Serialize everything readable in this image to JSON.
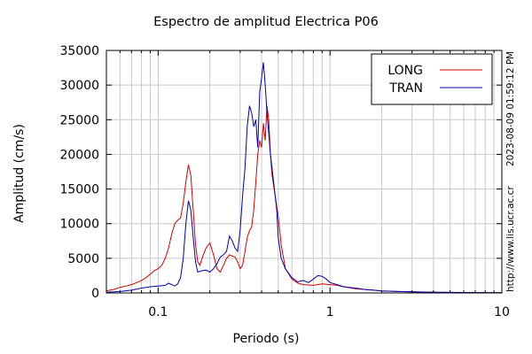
{
  "chart_data": {
    "type": "line",
    "title": "Espectro de amplitud Electrica P06",
    "xlabel": "Periodo (s)",
    "ylabel": "Amplitud (cm/s)",
    "xscale": "log",
    "xlim": [
      0.05,
      10
    ],
    "ylim": [
      0,
      35000
    ],
    "grid": true,
    "legend_position": "top-right",
    "x_ticks": [
      "0.1",
      "1",
      "10"
    ],
    "y_ticks": [
      "0",
      "5000",
      "10000",
      "15000",
      "20000",
      "25000",
      "30000",
      "35000"
    ],
    "series": [
      {
        "name": "LONG",
        "color": "#d40000",
        "points": [
          [
            0.05,
            300
          ],
          [
            0.055,
            500
          ],
          [
            0.06,
            800
          ],
          [
            0.065,
            1000
          ],
          [
            0.07,
            1200
          ],
          [
            0.075,
            1500
          ],
          [
            0.08,
            1800
          ],
          [
            0.085,
            2200
          ],
          [
            0.09,
            2700
          ],
          [
            0.095,
            3200
          ],
          [
            0.1,
            3500
          ],
          [
            0.105,
            4000
          ],
          [
            0.11,
            5000
          ],
          [
            0.115,
            6500
          ],
          [
            0.12,
            8500
          ],
          [
            0.125,
            10000
          ],
          [
            0.13,
            10500
          ],
          [
            0.135,
            10800
          ],
          [
            0.14,
            13000
          ],
          [
            0.145,
            16000
          ],
          [
            0.15,
            18500
          ],
          [
            0.155,
            17000
          ],
          [
            0.16,
            12000
          ],
          [
            0.165,
            7000
          ],
          [
            0.17,
            4500
          ],
          [
            0.175,
            4000
          ],
          [
            0.18,
            5000
          ],
          [
            0.19,
            6500
          ],
          [
            0.2,
            7200
          ],
          [
            0.21,
            5500
          ],
          [
            0.22,
            3500
          ],
          [
            0.23,
            3000
          ],
          [
            0.24,
            4000
          ],
          [
            0.25,
            5000
          ],
          [
            0.26,
            5500
          ],
          [
            0.27,
            5300
          ],
          [
            0.28,
            5200
          ],
          [
            0.29,
            4500
          ],
          [
            0.3,
            3500
          ],
          [
            0.31,
            4000
          ],
          [
            0.32,
            6000
          ],
          [
            0.33,
            8000
          ],
          [
            0.34,
            9000
          ],
          [
            0.35,
            9500
          ],
          [
            0.36,
            12000
          ],
          [
            0.37,
            16000
          ],
          [
            0.38,
            20000
          ],
          [
            0.39,
            22000
          ],
          [
            0.4,
            21000
          ],
          [
            0.41,
            24500
          ],
          [
            0.42,
            22000
          ],
          [
            0.43,
            27000
          ],
          [
            0.44,
            25000
          ],
          [
            0.45,
            20000
          ],
          [
            0.46,
            17000
          ],
          [
            0.48,
            14000
          ],
          [
            0.5,
            11000
          ],
          [
            0.52,
            7000
          ],
          [
            0.55,
            3500
          ],
          [
            0.6,
            2000
          ],
          [
            0.65,
            1400
          ],
          [
            0.7,
            1200
          ],
          [
            0.8,
            1100
          ],
          [
            0.9,
            1300
          ],
          [
            1.0,
            1200
          ],
          [
            1.1,
            1100
          ],
          [
            1.2,
            900
          ],
          [
            1.4,
            600
          ],
          [
            1.6,
            500
          ],
          [
            1.8,
            400
          ],
          [
            2.0,
            300
          ],
          [
            2.5,
            200
          ],
          [
            3,
            150
          ],
          [
            4,
            100
          ],
          [
            5,
            80
          ],
          [
            7,
            50
          ],
          [
            10,
            30
          ]
        ]
      },
      {
        "name": "TRAN",
        "color": "#0000b4",
        "points": [
          [
            0.05,
            100
          ],
          [
            0.06,
            200
          ],
          [
            0.07,
            400
          ],
          [
            0.08,
            700
          ],
          [
            0.09,
            900
          ],
          [
            0.1,
            1000
          ],
          [
            0.11,
            1100
          ],
          [
            0.115,
            1400
          ],
          [
            0.12,
            1200
          ],
          [
            0.125,
            1000
          ],
          [
            0.13,
            1300
          ],
          [
            0.135,
            2200
          ],
          [
            0.14,
            5000
          ],
          [
            0.145,
            10000
          ],
          [
            0.15,
            13300
          ],
          [
            0.155,
            12000
          ],
          [
            0.16,
            8000
          ],
          [
            0.165,
            4500
          ],
          [
            0.17,
            3000
          ],
          [
            0.18,
            3200
          ],
          [
            0.19,
            3300
          ],
          [
            0.2,
            3000
          ],
          [
            0.21,
            3500
          ],
          [
            0.22,
            4200
          ],
          [
            0.23,
            5200
          ],
          [
            0.24,
            5500
          ],
          [
            0.25,
            6000
          ],
          [
            0.26,
            8200
          ],
          [
            0.27,
            7500
          ],
          [
            0.28,
            6500
          ],
          [
            0.29,
            6000
          ],
          [
            0.3,
            9000
          ],
          [
            0.31,
            14000
          ],
          [
            0.32,
            18000
          ],
          [
            0.33,
            24000
          ],
          [
            0.34,
            27000
          ],
          [
            0.35,
            26000
          ],
          [
            0.36,
            24000
          ],
          [
            0.37,
            25000
          ],
          [
            0.38,
            21000
          ],
          [
            0.39,
            29000
          ],
          [
            0.4,
            31000
          ],
          [
            0.41,
            33300
          ],
          [
            0.42,
            30000
          ],
          [
            0.43,
            26000
          ],
          [
            0.44,
            23000
          ],
          [
            0.45,
            20000
          ],
          [
            0.47,
            16000
          ],
          [
            0.49,
            12000
          ],
          [
            0.5,
            8000
          ],
          [
            0.52,
            5000
          ],
          [
            0.55,
            3500
          ],
          [
            0.6,
            2200
          ],
          [
            0.65,
            1600
          ],
          [
            0.7,
            1800
          ],
          [
            0.75,
            1500
          ],
          [
            0.8,
            2000
          ],
          [
            0.85,
            2500
          ],
          [
            0.9,
            2400
          ],
          [
            0.95,
            2000
          ],
          [
            1.0,
            1500
          ],
          [
            1.1,
            1200
          ],
          [
            1.2,
            900
          ],
          [
            1.4,
            700
          ],
          [
            1.6,
            500
          ],
          [
            1.8,
            400
          ],
          [
            2.0,
            300
          ],
          [
            2.5,
            200
          ],
          [
            3,
            150
          ],
          [
            4,
            100
          ],
          [
            5,
            80
          ],
          [
            7,
            50
          ],
          [
            10,
            30
          ]
        ]
      }
    ]
  },
  "side": {
    "timestamp": "2023-08-09 01:59:12 PM",
    "url": "http://www.lis.ucr.ac.cr"
  }
}
